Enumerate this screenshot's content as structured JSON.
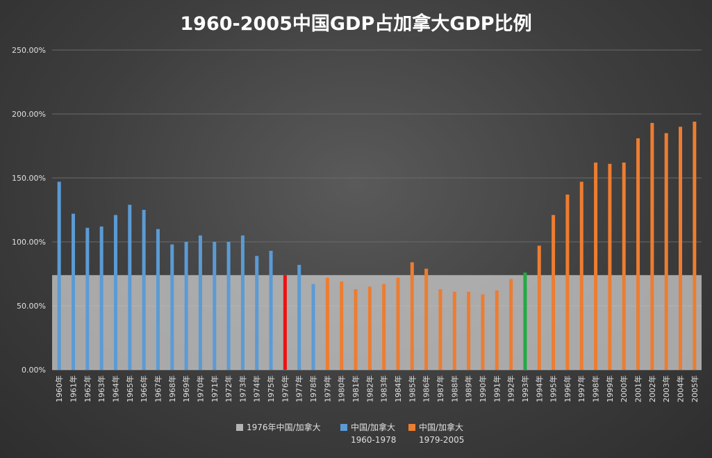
{
  "chart_data": {
    "type": "bar",
    "title": "1960-2005中国GDP占加拿大GDP比例",
    "xlabel": "",
    "ylabel": "",
    "ylim": [
      0,
      2.5
    ],
    "yticks": [
      0,
      0.5,
      1.0,
      1.5,
      2.0,
      2.5
    ],
    "ytick_labels": [
      "0.00%",
      "50.00%",
      "100.00%",
      "150.00%",
      "200.00%",
      "250.00%"
    ],
    "grid": true,
    "legend_position": "bottom",
    "categories": [
      "1960年",
      "1961年",
      "1962年",
      "1963年",
      "1964年",
      "1965年",
      "1966年",
      "1967年",
      "1968年",
      "1969年",
      "1970年",
      "1971年",
      "1972年",
      "1973年",
      "1974年",
      "1975年",
      "1976年",
      "1977年",
      "1978年",
      "1979年",
      "1980年",
      "1981年",
      "1982年",
      "1983年",
      "1984年",
      "1985年",
      "1986年",
      "1987年",
      "1988年",
      "1989年",
      "1990年",
      "1991年",
      "1992年",
      "1993年",
      "1994年",
      "1995年",
      "1996年",
      "1997年",
      "1998年",
      "1999年",
      "2000年",
      "2001年",
      "2002年",
      "2003年",
      "2004年",
      "2005年"
    ],
    "values": [
      1.47,
      1.22,
      1.11,
      1.12,
      1.21,
      1.29,
      1.25,
      1.1,
      0.98,
      1.0,
      1.05,
      1.0,
      1.0,
      1.05,
      0.89,
      0.93,
      0.74,
      0.82,
      0.67,
      0.72,
      0.69,
      0.63,
      0.65,
      0.67,
      0.72,
      0.84,
      0.79,
      0.63,
      0.61,
      0.61,
      0.59,
      0.62,
      0.71,
      0.76,
      0.97,
      1.21,
      1.37,
      1.47,
      1.62,
      1.61,
      1.62,
      1.81,
      1.93,
      1.85,
      1.9,
      1.94
    ],
    "bar_colors": [
      "#5b9bd5",
      "#5b9bd5",
      "#5b9bd5",
      "#5b9bd5",
      "#5b9bd5",
      "#5b9bd5",
      "#5b9bd5",
      "#5b9bd5",
      "#5b9bd5",
      "#5b9bd5",
      "#5b9bd5",
      "#5b9bd5",
      "#5b9bd5",
      "#5b9bd5",
      "#5b9bd5",
      "#5b9bd5",
      "#ee1111",
      "#5b9bd5",
      "#5b9bd5",
      "#ed7d31",
      "#ed7d31",
      "#ed7d31",
      "#ed7d31",
      "#ed7d31",
      "#ed7d31",
      "#ed7d31",
      "#ed7d31",
      "#ed7d31",
      "#ed7d31",
      "#ed7d31",
      "#ed7d31",
      "#ed7d31",
      "#ed7d31",
      "#22aa44",
      "#ed7d31",
      "#ed7d31",
      "#ed7d31",
      "#ed7d31",
      "#ed7d31",
      "#ed7d31",
      "#ed7d31",
      "#ed7d31",
      "#ed7d31",
      "#ed7d31",
      "#ed7d31",
      "#ed7d31"
    ],
    "reference_area": {
      "name": "1976年中国/加拿大",
      "value": 0.74,
      "color": "#c8c8c8"
    },
    "series": [
      {
        "name": "1976年中国/加拿大",
        "color": "#b4b4b4"
      },
      {
        "name": "中国/加拿大 1960-1978",
        "color": "#5b9bd5"
      },
      {
        "name": "中国/加拿大 1979-2005",
        "color": "#ed7d31"
      }
    ]
  },
  "legend": {
    "items": [
      {
        "line1": "1976年中国/加拿大",
        "line2": "",
        "color": "#b4b4b4"
      },
      {
        "line1": "中国/加拿大",
        "line2": "1960-1978",
        "color": "#5b9bd5"
      },
      {
        "line1": "中国/加拿大",
        "line2": "1979-2005",
        "color": "#ed7d31"
      }
    ]
  }
}
